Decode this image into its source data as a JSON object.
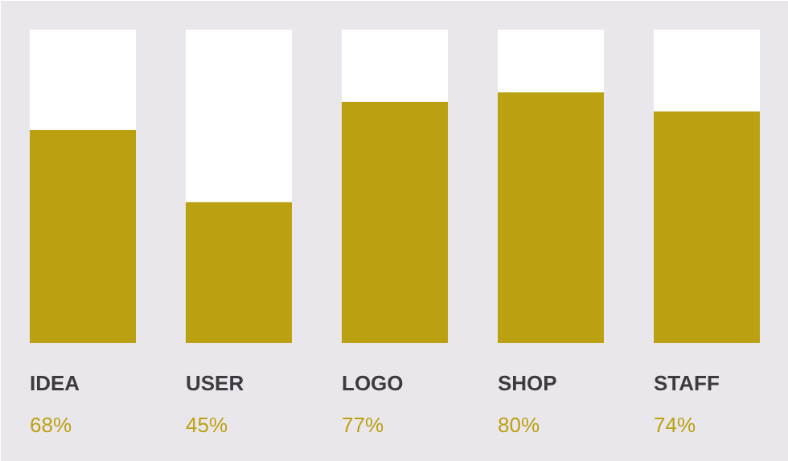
{
  "chart_data": {
    "type": "bar",
    "stacked": true,
    "categories": [
      "IDEA",
      "USER",
      "LOGO",
      "SHOP",
      "STAFF"
    ],
    "series": [
      {
        "color": "#bba112",
        "values": [
          68,
          45,
          77,
          80,
          74
        ],
        "value_labels": [
          "68%",
          "45%",
          "77%",
          "80%",
          "74%"
        ]
      },
      {
        "color": "#ffffff",
        "values": [
          32,
          55,
          23,
          20,
          26
        ]
      }
    ],
    "ylim": [
      0,
      100
    ],
    "tick_labels": false
  }
}
